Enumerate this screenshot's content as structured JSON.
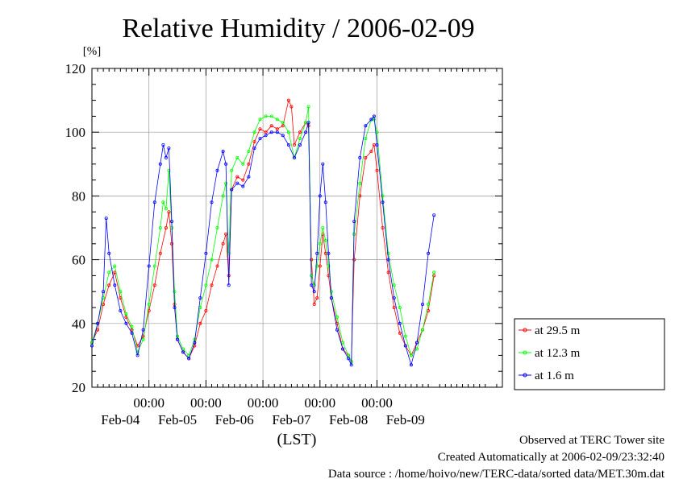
{
  "chart_data": {
    "type": "line",
    "title": "Relative Humidity / 2006-02-09",
    "ylabel": "[%]",
    "xlabel": "(LST)",
    "ylim": [
      20,
      120
    ],
    "yticks": [
      20,
      40,
      60,
      80,
      100,
      120
    ],
    "x_range_hours": [
      0,
      144
    ],
    "x_midnight_labels": [
      {
        "x": 20,
        "label": "00:00"
      },
      {
        "x": 40,
        "label": "00:00"
      },
      {
        "x": 60,
        "label": "00:00"
      },
      {
        "x": 80,
        "label": "00:00"
      },
      {
        "x": 100,
        "label": "00:00"
      }
    ],
    "x_day_labels": [
      {
        "x": 10,
        "label": "Feb-04"
      },
      {
        "x": 30,
        "label": "Feb-05"
      },
      {
        "x": 50,
        "label": "Feb-06"
      },
      {
        "x": 70,
        "label": "Feb-07"
      },
      {
        "x": 90,
        "label": "Feb-08"
      },
      {
        "x": 110,
        "label": "Feb-09"
      }
    ],
    "grid": true,
    "legend_position": "right",
    "series": [
      {
        "name": "at 29.5 m",
        "color": "#ff0000",
        "points": [
          [
            0,
            34
          ],
          [
            2,
            38
          ],
          [
            4,
            46
          ],
          [
            6,
            52
          ],
          [
            8,
            56
          ],
          [
            10,
            48
          ],
          [
            12,
            42
          ],
          [
            14,
            38
          ],
          [
            16,
            33
          ],
          [
            18,
            36
          ],
          [
            20,
            44
          ],
          [
            22,
            52
          ],
          [
            24,
            62
          ],
          [
            26,
            70
          ],
          [
            27,
            75
          ],
          [
            28,
            65
          ],
          [
            29,
            46
          ],
          [
            30,
            35
          ],
          [
            32,
            31
          ],
          [
            34,
            29
          ],
          [
            36,
            33
          ],
          [
            38,
            40
          ],
          [
            40,
            44
          ],
          [
            42,
            52
          ],
          [
            44,
            58
          ],
          [
            46,
            65
          ],
          [
            47,
            68
          ],
          [
            48,
            55
          ],
          [
            49,
            82
          ],
          [
            51,
            86
          ],
          [
            53,
            85
          ],
          [
            55,
            90
          ],
          [
            57,
            97
          ],
          [
            59,
            101
          ],
          [
            61,
            100
          ],
          [
            63,
            102
          ],
          [
            65,
            101
          ],
          [
            67,
            102
          ],
          [
            69,
            110
          ],
          [
            70,
            108
          ],
          [
            71,
            96
          ],
          [
            73,
            100
          ],
          [
            75,
            103
          ],
          [
            76,
            102
          ],
          [
            77,
            60
          ],
          [
            78,
            46
          ],
          [
            79,
            48
          ],
          [
            80,
            58
          ],
          [
            81,
            68
          ],
          [
            82,
            62
          ],
          [
            83,
            55
          ],
          [
            84,
            48
          ],
          [
            86,
            40
          ],
          [
            88,
            32
          ],
          [
            90,
            30
          ],
          [
            91,
            28
          ],
          [
            92,
            60
          ],
          [
            94,
            80
          ],
          [
            96,
            92
          ],
          [
            98,
            94
          ],
          [
            99,
            96
          ],
          [
            100,
            88
          ],
          [
            102,
            70
          ],
          [
            104,
            56
          ],
          [
            106,
            45
          ],
          [
            108,
            37
          ],
          [
            110,
            33
          ],
          [
            112,
            30
          ],
          [
            114,
            34
          ],
          [
            116,
            38
          ],
          [
            118,
            44
          ],
          [
            120,
            55
          ]
        ]
      },
      {
        "name": "at 12.3 m",
        "color": "#00ff00",
        "points": [
          [
            0,
            34
          ],
          [
            2,
            40
          ],
          [
            4,
            48
          ],
          [
            6,
            56
          ],
          [
            8,
            58
          ],
          [
            10,
            50
          ],
          [
            12,
            43
          ],
          [
            14,
            39
          ],
          [
            16,
            31
          ],
          [
            18,
            35
          ],
          [
            20,
            46
          ],
          [
            22,
            58
          ],
          [
            24,
            70
          ],
          [
            25,
            78
          ],
          [
            26,
            76
          ],
          [
            27,
            88
          ],
          [
            28,
            70
          ],
          [
            29,
            50
          ],
          [
            30,
            36
          ],
          [
            32,
            32
          ],
          [
            34,
            30
          ],
          [
            36,
            35
          ],
          [
            38,
            45
          ],
          [
            40,
            52
          ],
          [
            42,
            60
          ],
          [
            44,
            70
          ],
          [
            46,
            80
          ],
          [
            47,
            84
          ],
          [
            48,
            62
          ],
          [
            49,
            88
          ],
          [
            51,
            92
          ],
          [
            53,
            90
          ],
          [
            55,
            94
          ],
          [
            57,
            100
          ],
          [
            59,
            104
          ],
          [
            61,
            105
          ],
          [
            63,
            105
          ],
          [
            65,
            104
          ],
          [
            67,
            103
          ],
          [
            69,
            100
          ],
          [
            71,
            92
          ],
          [
            73,
            98
          ],
          [
            75,
            103
          ],
          [
            76,
            108
          ],
          [
            77,
            55
          ],
          [
            78,
            52
          ],
          [
            79,
            58
          ],
          [
            80,
            65
          ],
          [
            81,
            70
          ],
          [
            82,
            66
          ],
          [
            83,
            58
          ],
          [
            84,
            50
          ],
          [
            86,
            42
          ],
          [
            88,
            34
          ],
          [
            90,
            30
          ],
          [
            91,
            28
          ],
          [
            92,
            68
          ],
          [
            94,
            84
          ],
          [
            96,
            98
          ],
          [
            98,
            104
          ],
          [
            99,
            104
          ],
          [
            100,
            100
          ],
          [
            102,
            80
          ],
          [
            104,
            62
          ],
          [
            106,
            52
          ],
          [
            108,
            45
          ],
          [
            110,
            36
          ],
          [
            112,
            30
          ],
          [
            114,
            32
          ],
          [
            116,
            38
          ],
          [
            118,
            46
          ],
          [
            120,
            56
          ]
        ]
      },
      {
        "name": "at 1.6 m",
        "color": "#0000ff",
        "points": [
          [
            0,
            33
          ],
          [
            2,
            40
          ],
          [
            4,
            50
          ],
          [
            5,
            73
          ],
          [
            6,
            62
          ],
          [
            8,
            52
          ],
          [
            10,
            44
          ],
          [
            12,
            40
          ],
          [
            14,
            37
          ],
          [
            16,
            30
          ],
          [
            18,
            38
          ],
          [
            20,
            58
          ],
          [
            22,
            78
          ],
          [
            24,
            90
          ],
          [
            25,
            96
          ],
          [
            26,
            92
          ],
          [
            27,
            95
          ],
          [
            28,
            72
          ],
          [
            29,
            45
          ],
          [
            30,
            35
          ],
          [
            32,
            31
          ],
          [
            34,
            29
          ],
          [
            36,
            34
          ],
          [
            38,
            48
          ],
          [
            40,
            62
          ],
          [
            42,
            78
          ],
          [
            44,
            88
          ],
          [
            46,
            94
          ],
          [
            47,
            90
          ],
          [
            48,
            52
          ],
          [
            49,
            82
          ],
          [
            51,
            84
          ],
          [
            53,
            83
          ],
          [
            55,
            86
          ],
          [
            57,
            95
          ],
          [
            59,
            98
          ],
          [
            61,
            99
          ],
          [
            63,
            100
          ],
          [
            65,
            100
          ],
          [
            67,
            99
          ],
          [
            69,
            96
          ],
          [
            71,
            92
          ],
          [
            73,
            96
          ],
          [
            75,
            100
          ],
          [
            76,
            103
          ],
          [
            77,
            52
          ],
          [
            78,
            50
          ],
          [
            79,
            62
          ],
          [
            80,
            80
          ],
          [
            81,
            90
          ],
          [
            82,
            78
          ],
          [
            83,
            62
          ],
          [
            84,
            48
          ],
          [
            86,
            38
          ],
          [
            88,
            32
          ],
          [
            90,
            29
          ],
          [
            91,
            27
          ],
          [
            92,
            72
          ],
          [
            94,
            92
          ],
          [
            96,
            102
          ],
          [
            98,
            104
          ],
          [
            99,
            105
          ],
          [
            100,
            96
          ],
          [
            102,
            78
          ],
          [
            104,
            60
          ],
          [
            106,
            48
          ],
          [
            108,
            40
          ],
          [
            110,
            33
          ],
          [
            112,
            27
          ],
          [
            114,
            34
          ],
          [
            116,
            46
          ],
          [
            118,
            62
          ],
          [
            120,
            74
          ]
        ]
      }
    ]
  },
  "footer": {
    "line1": "Observed at TERC Tower site",
    "line2": "Created Automatically at 2006-02-09/23:32:40",
    "line3": "Data source : /home/hoivo/new/TERC-data/sorted  data/MET.30m.dat"
  }
}
